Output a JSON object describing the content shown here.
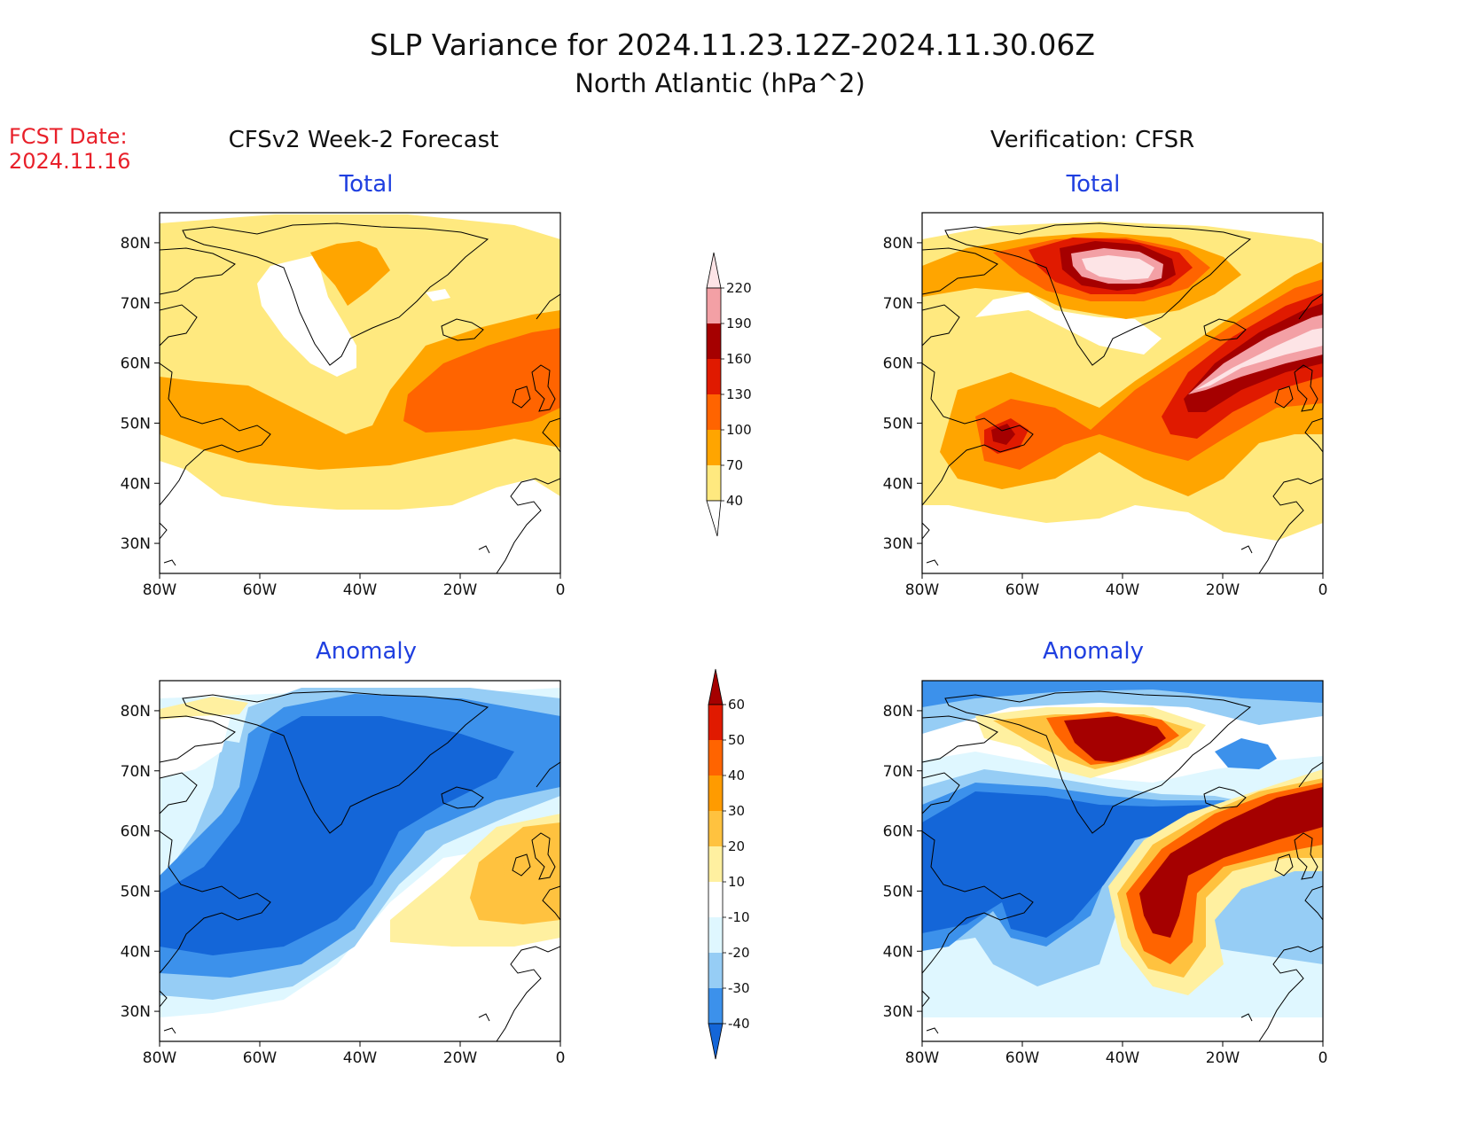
{
  "title_line1": "SLP Variance for 2024.11.23.12Z-2024.11.30.06Z",
  "title_line2": "North Atlantic (hPa^2)",
  "fcst_label": "FCST Date:",
  "fcst_date": "2024.11.16",
  "left_heading": "CFSv2 Week-2 Forecast",
  "right_heading": "Verification: CFSR",
  "panel_titles": {
    "total": "Total",
    "anomaly": "Anomaly"
  },
  "lat_labels": [
    "80N",
    "70N",
    "60N",
    "50N",
    "40N",
    "30N"
  ],
  "lon_labels": [
    "80W",
    "60W",
    "40W",
    "20W",
    "0"
  ],
  "map_extent": {
    "lon_min": -80,
    "lon_max": 0,
    "lat_min": 25,
    "lat_max": 85
  },
  "colors": {
    "title_blue": "#1f3fe0",
    "fcst_red": "#e8202a",
    "total": [
      "#ffffff",
      "#ffe97f",
      "#ffa500",
      "#ff6400",
      "#e01a00",
      "#a50000",
      "#f3a0a5",
      "#fde4e6"
    ],
    "anomaly": [
      "#1466d8",
      "#3c91eb",
      "#96cdf5",
      "#dff7ff",
      "#ffffff",
      "#fff0a0",
      "#ffc23f",
      "#ff9b00",
      "#ff6400",
      "#e01a00",
      "#a50000"
    ]
  },
  "total_colorbar": {
    "labels": [
      "40",
      "70",
      "100",
      "130",
      "160",
      "190",
      "220"
    ]
  },
  "anomaly_colorbar": {
    "labels": [
      "-40",
      "-30",
      "-20",
      "-10",
      "10",
      "20",
      "30",
      "40",
      "50",
      "60"
    ]
  }
}
